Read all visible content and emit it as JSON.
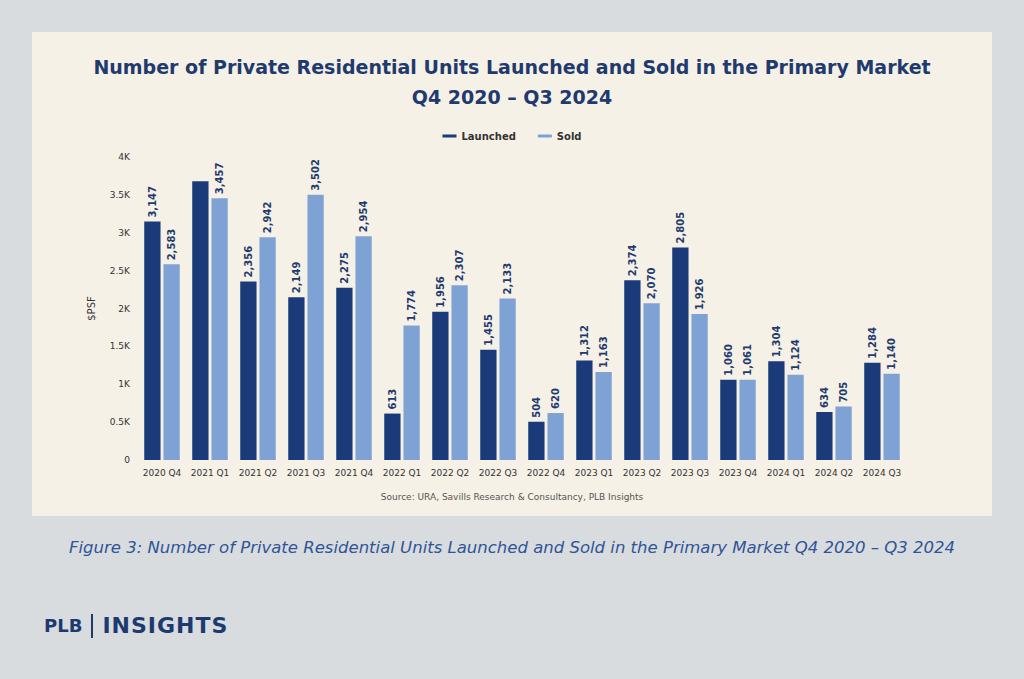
{
  "chart_data": {
    "type": "bar",
    "title": "Number of Private Residential Units Launched and Sold in the Primary Market",
    "subtitle": "Q4 2020 – Q3 2024",
    "y_label": "$PSF",
    "source": "Source: URA, Savills Research & Consultancy, PLB Insights",
    "caption": "Figure 3: Number of Private Residential Units Launched and Sold in the Primary Market Q4 2020 – Q3 2024",
    "logo": [
      "PLB",
      "INSIGHTS"
    ],
    "categories": [
      "2020 Q4",
      "2021 Q1",
      "2021 Q2",
      "2021 Q3",
      "2021 Q4",
      "2022 Q1",
      "2022 Q2",
      "2022 Q3",
      "2022 Q4",
      "2023 Q1",
      "2023 Q2",
      "2023 Q3",
      "2023 Q4",
      "2024 Q1",
      "2024 Q2",
      "2024 Q3"
    ],
    "series": [
      {
        "name": "Launched",
        "color": "#1b3a7a",
        "values": [
          3147,
          3680,
          2356,
          2149,
          2275,
          613,
          1956,
          1455,
          504,
          1312,
          2374,
          2805,
          1060,
          1304,
          634,
          1284
        ],
        "value_labels": [
          "3,147",
          null,
          "2,356",
          "2,149",
          "2,275",
          "613",
          "1,956",
          "1,455",
          "504",
          "1,312",
          "2,374",
          "2,805",
          "1,060",
          "1,304",
          "634",
          "1,284"
        ]
      },
      {
        "name": "Sold",
        "color": "#7fa2d4",
        "values": [
          2583,
          3457,
          2942,
          3502,
          2954,
          1774,
          2307,
          2133,
          620,
          1163,
          2070,
          1926,
          1061,
          1124,
          705,
          1140
        ],
        "value_labels": [
          "2,583",
          "3,457",
          "2,942",
          "3,502",
          "2,954",
          "1,774",
          "2,307",
          "2,133",
          "620",
          "1,163",
          "2,070",
          "1,926",
          "1,061",
          "1,124",
          "705",
          "1,140"
        ]
      }
    ],
    "ylim": [
      0,
      4000
    ],
    "yticks": [
      0,
      {
        "value": 500,
        "label": "0.5K"
      },
      {
        "value": 1000,
        "label": "1K"
      },
      {
        "value": 1500,
        "label": "1.5K"
      },
      {
        "value": 2000,
        "label": "2K"
      },
      {
        "value": 2500,
        "label": "2.5K"
      },
      {
        "value": 3000,
        "label": "3K"
      },
      {
        "value": 3500,
        "label": "3.5K"
      },
      {
        "value": 4000,
        "label": "4K"
      }
    ],
    "grid": false,
    "legend": "top",
    "data_labels": true
  }
}
